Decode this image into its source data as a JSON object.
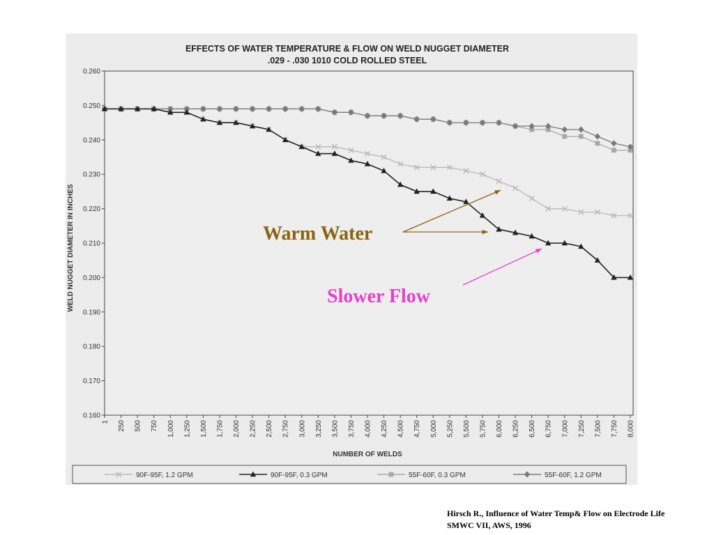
{
  "chart_data": {
    "type": "line",
    "title": "EFFECTS OF WATER TEMPERATURE & FLOW ON WELD NUGGET DIAMETER",
    "subtitle": ".029 - .030 1010 COLD ROLLED STEEL",
    "xlabel": "NUMBER OF WELDS",
    "ylabel": "WELD NUGGET DIAMETER IN INCHES",
    "x": [
      1,
      250,
      500,
      750,
      1000,
      1250,
      1500,
      1750,
      2000,
      2250,
      2500,
      2750,
      3000,
      3250,
      3500,
      3750,
      4000,
      4250,
      4500,
      4750,
      5000,
      5250,
      5500,
      5750,
      6000,
      6250,
      6500,
      6750,
      7000,
      7250,
      7500,
      7750,
      8000
    ],
    "xtick_labels": [
      "1",
      "250",
      "500",
      "750",
      "1,000",
      "1,250",
      "1,500",
      "1,750",
      "2,000",
      "2,250",
      "2,500",
      "2,750",
      "3,000",
      "3,250",
      "3,500",
      "3,750",
      "4,000",
      "4,250",
      "4,500",
      "4,750",
      "5,000",
      "5,250",
      "5,500",
      "5,750",
      "6,000",
      "6,250",
      "6,500",
      "6,750",
      "7,000",
      "7,250",
      "7,500",
      "7,750",
      "8,000"
    ],
    "ylim": [
      0.16,
      0.26
    ],
    "ytick_labels": [
      "0.160",
      "0.170",
      "0.180",
      "0.190",
      "0.200",
      "0.210",
      "0.220",
      "0.230",
      "0.240",
      "0.250",
      "0.260"
    ],
    "grid": false,
    "legend_position": "bottom",
    "series": [
      {
        "name": "90F-95F, 1.2 GPM",
        "marker": "x",
        "color": "#b8b8b8",
        "values": [
          0.249,
          0.249,
          0.249,
          0.249,
          0.248,
          0.248,
          0.246,
          0.245,
          0.245,
          0.244,
          0.243,
          0.24,
          0.238,
          0.238,
          0.238,
          0.237,
          0.236,
          0.235,
          0.233,
          0.232,
          0.232,
          0.232,
          0.231,
          0.23,
          0.228,
          0.226,
          0.223,
          0.22,
          0.22,
          0.219,
          0.219,
          0.218,
          0.218
        ]
      },
      {
        "name": "90F-95F, 0.3 GPM",
        "marker": "triangle",
        "color": "#222222",
        "values": [
          0.249,
          0.249,
          0.249,
          0.249,
          0.248,
          0.248,
          0.246,
          0.245,
          0.245,
          0.244,
          0.243,
          0.24,
          0.238,
          0.236,
          0.236,
          0.234,
          0.233,
          0.231,
          0.227,
          0.225,
          0.225,
          0.223,
          0.222,
          0.218,
          0.214,
          0.213,
          0.212,
          0.21,
          0.21,
          0.209,
          0.205,
          0.2,
          0.2
        ]
      },
      {
        "name": "55F-60F, 0.3 GPM",
        "marker": "square",
        "color": "#a8a8a8",
        "values": [
          0.249,
          0.249,
          0.249,
          0.249,
          0.249,
          0.249,
          0.249,
          0.249,
          0.249,
          0.249,
          0.249,
          0.249,
          0.249,
          0.249,
          0.248,
          0.248,
          0.247,
          0.247,
          0.247,
          0.246,
          0.246,
          0.245,
          0.245,
          0.245,
          0.245,
          0.244,
          0.243,
          0.243,
          0.241,
          0.241,
          0.239,
          0.237,
          0.237
        ]
      },
      {
        "name": "55F-60F, 1.2 GPM",
        "marker": "diamond",
        "color": "#7a7a7a",
        "values": [
          0.249,
          0.249,
          0.249,
          0.249,
          0.249,
          0.249,
          0.249,
          0.249,
          0.249,
          0.249,
          0.249,
          0.249,
          0.249,
          0.249,
          0.248,
          0.248,
          0.247,
          0.247,
          0.247,
          0.246,
          0.246,
          0.245,
          0.245,
          0.245,
          0.245,
          0.244,
          0.244,
          0.244,
          0.243,
          0.243,
          0.241,
          0.239,
          0.238
        ]
      }
    ]
  },
  "annotations": {
    "warm_water": {
      "text": "Warm Water",
      "color": "#8a6410"
    },
    "slower_flow": {
      "text": "Slower Flow",
      "color": "#e83fd0"
    }
  },
  "citation": {
    "line1": "Hirsch R., Influence of Water Temp& Flow on Electrode Life",
    "line2": "SMWC VII, AWS, 1996"
  }
}
